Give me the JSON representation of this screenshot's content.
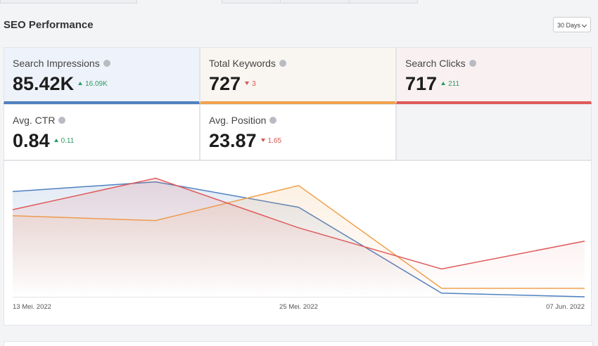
{
  "header": {
    "title": "SEO Performance",
    "range": "30 Days"
  },
  "metrics": [
    {
      "label": "Search Impressions",
      "value": "85.42K",
      "change": "16.09K",
      "direction": "up",
      "color": "#4f81c0",
      "background": "#eef2fa"
    },
    {
      "label": "Total Keywords",
      "value": "727",
      "change": "3",
      "direction": "down",
      "color": "#f0a24e",
      "background": "#f9f5f0"
    },
    {
      "label": "Search Clicks",
      "value": "717",
      "change": "211",
      "direction": "up",
      "color": "#e05a5a",
      "background": "#f9f1f1"
    },
    {
      "label": "Avg. CTR",
      "value": "0.84",
      "change": "0.11",
      "direction": "up"
    },
    {
      "label": "Avg. Position",
      "value": "23.87",
      "change": "1.65",
      "direction": "down"
    }
  ],
  "chart_data": {
    "type": "line",
    "categories": [
      "13 Mei. 2022",
      null,
      "25 Mei. 2022",
      null,
      "07 Jun. 2022"
    ],
    "ylim": [
      0,
      100
    ],
    "series": [
      {
        "name": "Search Impressions",
        "color": "#4f81c0",
        "values": [
          87,
          95,
          74,
          3,
          0
        ]
      },
      {
        "name": "Total Keywords",
        "color": "#f0a24e",
        "values": [
          67,
          63,
          92,
          7,
          7
        ]
      },
      {
        "name": "Search Clicks",
        "color": "#e05a5a",
        "values": [
          72,
          98,
          57,
          23,
          46
        ]
      }
    ]
  }
}
